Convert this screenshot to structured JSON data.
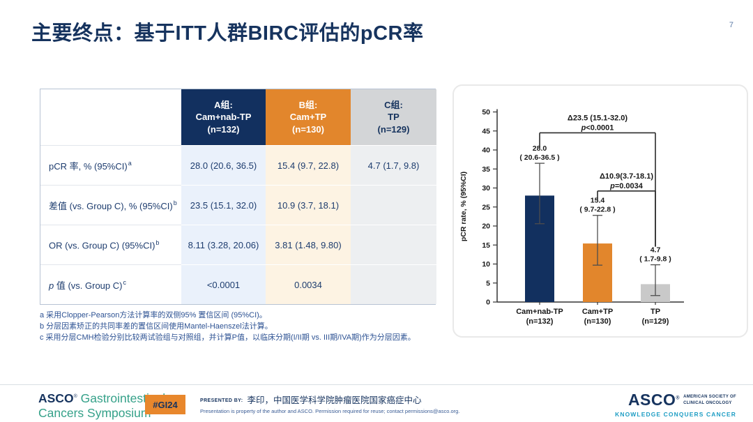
{
  "header": {
    "title": "主要终点：基于ITT人群BIRC评估的pCR率",
    "page_number": "7"
  },
  "table": {
    "columns": [
      {
        "label": "A组:\nCam+nab-TP\n(n=132)"
      },
      {
        "label": "B组:\nCam+TP\n(n=130)"
      },
      {
        "label": "C组:\nTP\n(n=129)"
      }
    ],
    "rows": [
      {
        "label_italic": "",
        "label": "pCR 率, % (95%CI)",
        "sup": "a",
        "values": [
          "28.0 (20.6, 36.5)",
          "15.4 (9.7, 22.8)",
          "4.7 (1.7, 9.8)"
        ]
      },
      {
        "label_italic": "",
        "label": "差值 (vs. Group C), % (95%CI)",
        "sup": "b",
        "values": [
          "23.5 (15.1, 32.0)",
          "10.9 (3.7, 18.1)",
          ""
        ]
      },
      {
        "label_italic": "",
        "label": "OR (vs. Group C) (95%CI)",
        "sup": "b",
        "values": [
          "8.11 (3.28, 20.06)",
          "3.81 (1.48, 9.80)",
          ""
        ]
      },
      {
        "label_italic": "p",
        "label": " 值 (vs. Group C)",
        "sup": "c",
        "values": [
          "<0.0001",
          "0.0034",
          ""
        ]
      }
    ]
  },
  "footnotes": [
    "a 采用Clopper-Pearson方法计算率的双侧95% 置信区间 (95%CI)。",
    "b 分层因素矫正的共同率差的置信区间使用Mantel-Haenszel法计算。",
    "c 采用分层CMH检验分别比较两试验组与对照组，并计算P值，以临床分期(I/II期 vs. III期/IVA期)作为分层因素。"
  ],
  "chart_data": {
    "type": "bar",
    "title": "",
    "xlabel": "",
    "ylabel": "pCR rate, % (95%CI)",
    "ylim": [
      0,
      50
    ],
    "ytick_step": 5,
    "grid": false,
    "legend": false,
    "categories": [
      "Cam+nab-TP\n(n=132)",
      "Cam+TP\n(n=130)",
      "TP\n(n=129)"
    ],
    "values": [
      28.0,
      15.4,
      4.7
    ],
    "ci_low": [
      20.6,
      9.7,
      1.7
    ],
    "ci_high": [
      36.5,
      22.8,
      9.8
    ],
    "bar_labels": [
      [
        "28.0",
        "( 20.6-36.5 )"
      ],
      [
        "15.4",
        "( 9.7-22.8 )"
      ],
      [
        "4.7",
        "( 1.7-9.8 )"
      ]
    ],
    "bar_colors": [
      "#12305f",
      "#e2862c",
      "#c9c9c9"
    ],
    "comparisons": [
      {
        "from": 0,
        "to": 2,
        "bracket_y_value": 44.5,
        "delta": "Δ23.5 (15.1-32.0)",
        "p_prefix": "p",
        "p_text": "<0.0001"
      },
      {
        "from": 1,
        "to": 2,
        "bracket_y_value": 29.2,
        "delta": "Δ10.9(3.7-18.1)",
        "p_prefix": "p",
        "p_text": "=0.0034"
      }
    ]
  },
  "footer": {
    "brand_left": {
      "asco": "ASCO",
      "reg": "®",
      "line1_rest": " Gastrointestinal",
      "line2": "Cancers Symposium"
    },
    "badge": "#GI24",
    "presented_by_label": "PRESENTED BY:",
    "presenter": "李印，中国医学科学院肿瘤医院国家癌症中心",
    "disclaimer": "Presentation is property of the author and ASCO. Permission required for reuse; contact permissions@asco.org.",
    "brand_right": {
      "asco": "ASCO",
      "reg": "®",
      "society_line1": "AMERICAN SOCIETY OF",
      "society_line2": "CLINICAL ONCOLOGY",
      "tagline": "KNOWLEDGE CONQUERS CANCER"
    }
  },
  "colors": {
    "navy": "#12305f",
    "orange": "#e2862c",
    "gray": "#c9c9c9",
    "teal_brand": "#35a189",
    "tagline_blue": "#1d9dc4"
  }
}
